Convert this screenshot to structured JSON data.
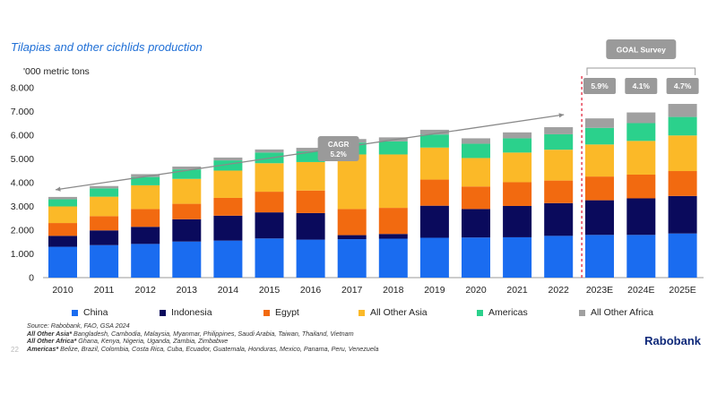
{
  "page": {
    "title": "Tilapias and other cichlids production",
    "unit_label": "'000 metric tons",
    "brand": "Rabobank",
    "page_number": "22"
  },
  "notes": {
    "source": "Source: Rabobank, FAO, GSA 2024",
    "asia_label": "All Other Asia*",
    "asia_text": " Bangladesh, Cambodia, Malaysia, Myanmar, Philippines, Saudi Arabia, Taiwan, Thailand, Vietnam",
    "africa_label": "All Other Africa*",
    "africa_text": " Ghana, Kenya, Nigeria, Uganda, Zambia, Zimbabwe",
    "americas_label": "Americas*",
    "americas_text": " Belize, Brazil, Colombia, Costa Rica, Cuba, Ecuador, Guatemala, Honduras, Mexico, Panama, Peru, Venezuela"
  },
  "chart_data": {
    "type": "bar",
    "stacked": true,
    "title": "Tilapias and other cichlids production",
    "ylabel": "'000 metric tons",
    "ylim": [
      0,
      8000
    ],
    "yticks": [
      "0",
      "1.000",
      "2.000",
      "3.000",
      "4.000",
      "5.000",
      "6.000",
      "7.000",
      "8.000"
    ],
    "categories": [
      "2010",
      "2011",
      "2012",
      "2013",
      "2014",
      "2015",
      "2016",
      "2017",
      "2018",
      "2019",
      "2020",
      "2021",
      "2022",
      "2023E",
      "2024E",
      "2025E"
    ],
    "series": [
      {
        "name": "China",
        "color": "#1a6cf0",
        "values": [
          1300,
          1370,
          1420,
          1520,
          1560,
          1650,
          1600,
          1620,
          1640,
          1680,
          1690,
          1700,
          1760,
          1800,
          1800,
          1860
        ]
      },
      {
        "name": "Indonesia",
        "color": "#0a0a5c",
        "values": [
          460,
          620,
          720,
          940,
          1050,
          1100,
          1120,
          170,
          200,
          1350,
          1200,
          1320,
          1380,
          1460,
          1540,
          1580
        ]
      },
      {
        "name": "Egypt",
        "color": "#f26a10",
        "values": [
          540,
          600,
          750,
          650,
          750,
          870,
          950,
          1100,
          1100,
          1100,
          950,
          1000,
          950,
          1000,
          1000,
          1050
        ]
      },
      {
        "name": "All Other Asia",
        "color": "#fbb928",
        "values": [
          700,
          820,
          1000,
          1050,
          1150,
          1200,
          1200,
          2300,
          2250,
          1350,
          1200,
          1250,
          1300,
          1350,
          1420,
          1500
        ]
      },
      {
        "name": "Americas",
        "color": "#2bd18c",
        "values": [
          300,
          350,
          350,
          400,
          430,
          450,
          450,
          500,
          550,
          550,
          600,
          600,
          650,
          700,
          750,
          780
        ]
      },
      {
        "name": "All Other Africa",
        "color": "#a0a0a0",
        "values": [
          100,
          100,
          120,
          120,
          120,
          130,
          150,
          150,
          170,
          200,
          230,
          250,
          300,
          400,
          450,
          550
        ]
      }
    ],
    "annotations": {
      "cagr_label_line1": "CAGR",
      "cagr_label_line2": "5.2%",
      "survey_label": "GOAL Survey",
      "growth_rates": [
        "5.9%",
        "4.1%",
        "4.7%"
      ]
    },
    "legend_position": "bottom",
    "grid": false
  }
}
